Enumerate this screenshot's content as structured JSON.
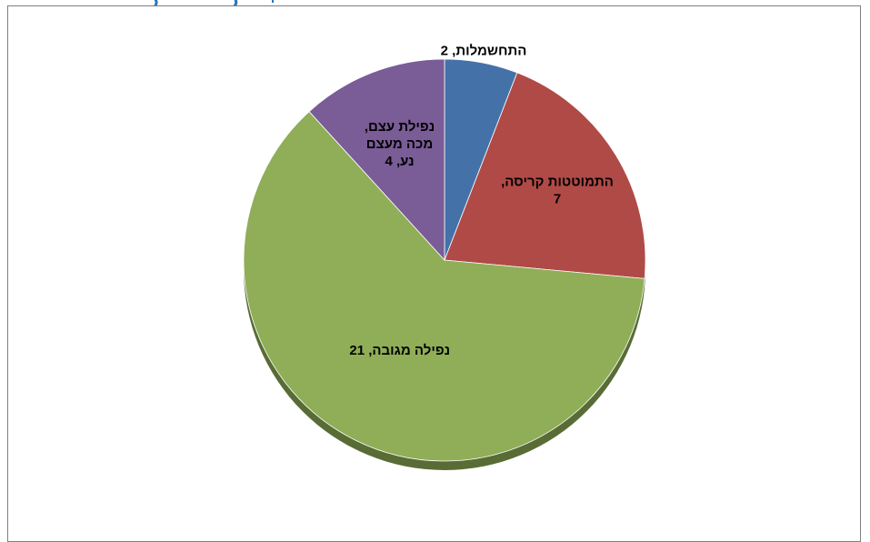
{
  "chart_data": {
    "type": "pie",
    "title": "",
    "slices": [
      {
        "label": "התחשמלות",
        "value": 2,
        "color": "#4472A8"
      },
      {
        "label": "התמוטטות קריסה",
        "value": 7,
        "color": "#B04A47"
      },
      {
        "label": "נפילה מגובה",
        "value": 21,
        "color": "#8FAE57"
      },
      {
        "label": "נפילת עצם, מכה מעצם נע",
        "value": 4,
        "color": "#7A5C97"
      }
    ],
    "data_labels": [
      {
        "lines": [
          "התחשמלות, 2"
        ]
      },
      {
        "lines": [
          "התמוטטות קריסה,",
          "7"
        ]
      },
      {
        "lines": [
          "נפילה מגובה, 21"
        ]
      },
      {
        "lines": [
          "נפילת עצם,",
          "מכה מעצם",
          "נע, 4"
        ]
      }
    ]
  },
  "header_fragment": {
    "color": "#2E75B6"
  }
}
